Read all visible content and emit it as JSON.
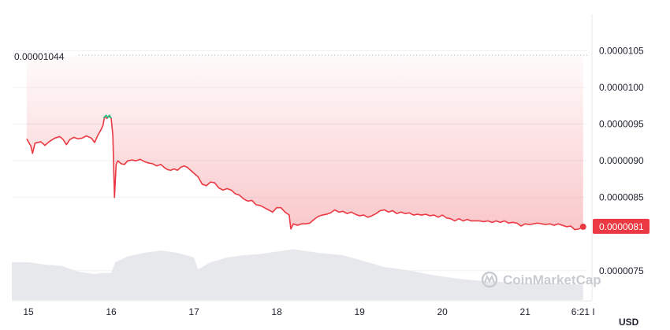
{
  "chart_data": {
    "type": "area",
    "currency_label": "USD",
    "watermark": "CoinMarketCap",
    "reference_price_label": "0.00001044",
    "current_price_label": "0.0000081",
    "ylim": [
      7.1e-06,
      1.1e-05
    ],
    "y_ticks": [
      {
        "value": 1.05e-05,
        "label": "0.0000105"
      },
      {
        "value": 1e-05,
        "label": "0.0000100"
      },
      {
        "value": 9.5e-06,
        "label": "0.0000095"
      },
      {
        "value": 9e-06,
        "label": "0.0000090"
      },
      {
        "value": 8.5e-06,
        "label": "0.0000085"
      },
      {
        "value": 7.5e-06,
        "label": "0.0000075"
      }
    ],
    "x_range": [
      14.8,
      21.75
    ],
    "x_ticks": [
      {
        "value": 15,
        "label": "15"
      },
      {
        "value": 16,
        "label": "16"
      },
      {
        "value": 17,
        "label": "17"
      },
      {
        "value": 18,
        "label": "18"
      },
      {
        "value": 19,
        "label": "19"
      },
      {
        "value": 20,
        "label": "20"
      },
      {
        "value": 21,
        "label": "21"
      },
      {
        "value": 21.7,
        "label": "6:21 I"
      }
    ],
    "reference_price": 1.044e-05,
    "current_price": 8.1e-06,
    "colors": {
      "down": "#ea3943",
      "up": "#16c784",
      "grid": "#eff2f5",
      "volume": "#dfe3e8",
      "tag": "#ea3943"
    },
    "price_series": [
      [
        14.98,
        9.3e-06
      ],
      [
        15.03,
        9.2e-06
      ],
      [
        15.05,
        9.1e-06
      ],
      [
        15.08,
        9.24e-06
      ],
      [
        15.15,
        9.26e-06
      ],
      [
        15.2,
        9.21e-06
      ],
      [
        15.25,
        9.26e-06
      ],
      [
        15.32,
        9.31e-06
      ],
      [
        15.38,
        9.33e-06
      ],
      [
        15.42,
        9.29e-06
      ],
      [
        15.46,
        9.22e-06
      ],
      [
        15.5,
        9.29e-06
      ],
      [
        15.55,
        9.32e-06
      ],
      [
        15.6,
        9.3e-06
      ],
      [
        15.65,
        9.31e-06
      ],
      [
        15.7,
        9.34e-06
      ],
      [
        15.76,
        9.31e-06
      ],
      [
        15.8,
        9.25e-06
      ],
      [
        15.84,
        9.35e-06
      ],
      [
        15.88,
        9.43e-06
      ],
      [
        15.9,
        9.48e-06
      ],
      [
        15.92,
        9.6e-06
      ],
      [
        15.95,
        9.58e-06
      ],
      [
        15.97,
        9.61e-06
      ],
      [
        16.0,
        9.58e-06
      ],
      [
        16.02,
        9.35e-06
      ],
      [
        16.04,
        8.5e-06
      ],
      [
        16.06,
        8.95e-06
      ],
      [
        16.08,
        9e-06
      ],
      [
        16.12,
        8.96e-06
      ],
      [
        16.16,
        8.95e-06
      ],
      [
        16.2,
        9e-06
      ],
      [
        16.25,
        9.01e-06
      ],
      [
        16.3,
        9e-06
      ],
      [
        16.35,
        9.02e-06
      ],
      [
        16.4,
        8.99e-06
      ],
      [
        16.45,
        8.97e-06
      ],
      [
        16.5,
        8.96e-06
      ],
      [
        16.55,
        8.93e-06
      ],
      [
        16.6,
        8.95e-06
      ],
      [
        16.64,
        8.91e-06
      ],
      [
        16.68,
        8.88e-06
      ],
      [
        16.72,
        8.87e-06
      ],
      [
        16.76,
        8.89e-06
      ],
      [
        16.8,
        8.87e-06
      ],
      [
        16.84,
        8.91e-06
      ],
      [
        16.88,
        8.93e-06
      ],
      [
        16.92,
        8.91e-06
      ],
      [
        16.96,
        8.87e-06
      ],
      [
        17.0,
        8.83e-06
      ],
      [
        17.05,
        8.78e-06
      ],
      [
        17.1,
        8.68e-06
      ],
      [
        17.15,
        8.66e-06
      ],
      [
        17.2,
        8.71e-06
      ],
      [
        17.25,
        8.7e-06
      ],
      [
        17.3,
        8.63e-06
      ],
      [
        17.35,
        8.6e-06
      ],
      [
        17.4,
        8.62e-06
      ],
      [
        17.45,
        8.6e-06
      ],
      [
        17.5,
        8.55e-06
      ],
      [
        17.55,
        8.53e-06
      ],
      [
        17.6,
        8.48e-06
      ],
      [
        17.65,
        8.45e-06
      ],
      [
        17.7,
        8.46e-06
      ],
      [
        17.75,
        8.4e-06
      ],
      [
        17.8,
        8.39e-06
      ],
      [
        17.85,
        8.36e-06
      ],
      [
        17.9,
        8.33e-06
      ],
      [
        17.95,
        8.3e-06
      ],
      [
        18.0,
        8.36e-06
      ],
      [
        18.05,
        8.36e-06
      ],
      [
        18.1,
        8.3e-06
      ],
      [
        18.15,
        8.26e-06
      ],
      [
        18.17,
        8.07e-06
      ],
      [
        18.2,
        8.14e-06
      ],
      [
        18.25,
        8.12e-06
      ],
      [
        18.3,
        8.14e-06
      ],
      [
        18.35,
        8.14e-06
      ],
      [
        18.4,
        8.15e-06
      ],
      [
        18.45,
        8.2e-06
      ],
      [
        18.5,
        8.24e-06
      ],
      [
        18.55,
        8.26e-06
      ],
      [
        18.6,
        8.27e-06
      ],
      [
        18.65,
        8.29e-06
      ],
      [
        18.7,
        8.33e-06
      ],
      [
        18.75,
        8.3e-06
      ],
      [
        18.8,
        8.31e-06
      ],
      [
        18.85,
        8.28e-06
      ],
      [
        18.9,
        8.3e-06
      ],
      [
        18.95,
        8.27e-06
      ],
      [
        19.0,
        8.25e-06
      ],
      [
        19.05,
        8.26e-06
      ],
      [
        19.1,
        8.23e-06
      ],
      [
        19.15,
        8.25e-06
      ],
      [
        19.2,
        8.28e-06
      ],
      [
        19.25,
        8.32e-06
      ],
      [
        19.3,
        8.33e-06
      ],
      [
        19.35,
        8.3e-06
      ],
      [
        19.4,
        8.32e-06
      ],
      [
        19.45,
        8.28e-06
      ],
      [
        19.5,
        8.3e-06
      ],
      [
        19.55,
        8.28e-06
      ],
      [
        19.6,
        8.29e-06
      ],
      [
        19.65,
        8.26e-06
      ],
      [
        19.7,
        8.27e-06
      ],
      [
        19.75,
        8.26e-06
      ],
      [
        19.8,
        8.27e-06
      ],
      [
        19.85,
        8.25e-06
      ],
      [
        19.9,
        8.26e-06
      ],
      [
        19.95,
        8.23e-06
      ],
      [
        20.0,
        8.26e-06
      ],
      [
        20.05,
        8.22e-06
      ],
      [
        20.1,
        8.21e-06
      ],
      [
        20.15,
        8.18e-06
      ],
      [
        20.2,
        8.21e-06
      ],
      [
        20.25,
        8.18e-06
      ],
      [
        20.3,
        8.2e-06
      ],
      [
        20.35,
        8.18e-06
      ],
      [
        20.4,
        8.18e-06
      ],
      [
        20.45,
        8.18e-06
      ],
      [
        20.5,
        8.17e-06
      ],
      [
        20.55,
        8.18e-06
      ],
      [
        20.6,
        8.16e-06
      ],
      [
        20.65,
        8.18e-06
      ],
      [
        20.7,
        8.16e-06
      ],
      [
        20.75,
        8.18e-06
      ],
      [
        20.8,
        8.15e-06
      ],
      [
        20.85,
        8.16e-06
      ],
      [
        20.9,
        8.15e-06
      ],
      [
        20.95,
        8.11e-06
      ],
      [
        21.0,
        8.14e-06
      ],
      [
        21.05,
        8.13e-06
      ],
      [
        21.1,
        8.14e-06
      ],
      [
        21.15,
        8.15e-06
      ],
      [
        21.2,
        8.14e-06
      ],
      [
        21.25,
        8.13e-06
      ],
      [
        21.3,
        8.14e-06
      ],
      [
        21.35,
        8.12e-06
      ],
      [
        21.4,
        8.14e-06
      ],
      [
        21.45,
        8.12e-06
      ],
      [
        21.5,
        8.1e-06
      ],
      [
        21.55,
        8.11e-06
      ],
      [
        21.6,
        8.06e-06
      ],
      [
        21.65,
        8.07e-06
      ],
      [
        21.7,
        8.1e-06
      ]
    ],
    "up_segment": [
      [
        15.91,
        9.58e-06
      ],
      [
        15.92,
        9.6e-06
      ],
      [
        15.94,
        9.62e-06
      ],
      [
        15.96,
        9.59e-06
      ],
      [
        15.98,
        9.62e-06
      ],
      [
        16.0,
        9.58e-06
      ]
    ],
    "volume_series": [
      [
        14.8,
        0.32
      ],
      [
        15.0,
        0.32
      ],
      [
        15.2,
        0.3
      ],
      [
        15.4,
        0.29
      ],
      [
        15.6,
        0.24
      ],
      [
        15.8,
        0.22
      ],
      [
        15.9,
        0.23
      ],
      [
        16.0,
        0.23
      ],
      [
        16.05,
        0.32
      ],
      [
        16.2,
        0.37
      ],
      [
        16.4,
        0.4
      ],
      [
        16.6,
        0.42
      ],
      [
        16.8,
        0.4
      ],
      [
        17.0,
        0.36
      ],
      [
        17.05,
        0.26
      ],
      [
        17.2,
        0.32
      ],
      [
        17.4,
        0.36
      ],
      [
        17.6,
        0.38
      ],
      [
        17.8,
        0.39
      ],
      [
        18.0,
        0.41
      ],
      [
        18.2,
        0.43
      ],
      [
        18.5,
        0.4
      ],
      [
        18.8,
        0.38
      ],
      [
        19.0,
        0.34
      ],
      [
        19.3,
        0.28
      ],
      [
        19.6,
        0.25
      ],
      [
        19.9,
        0.21
      ],
      [
        20.2,
        0.18
      ],
      [
        20.5,
        0.16
      ],
      [
        20.8,
        0.15
      ],
      [
        21.1,
        0.14
      ],
      [
        21.4,
        0.14
      ],
      [
        21.7,
        0.13
      ]
    ]
  }
}
